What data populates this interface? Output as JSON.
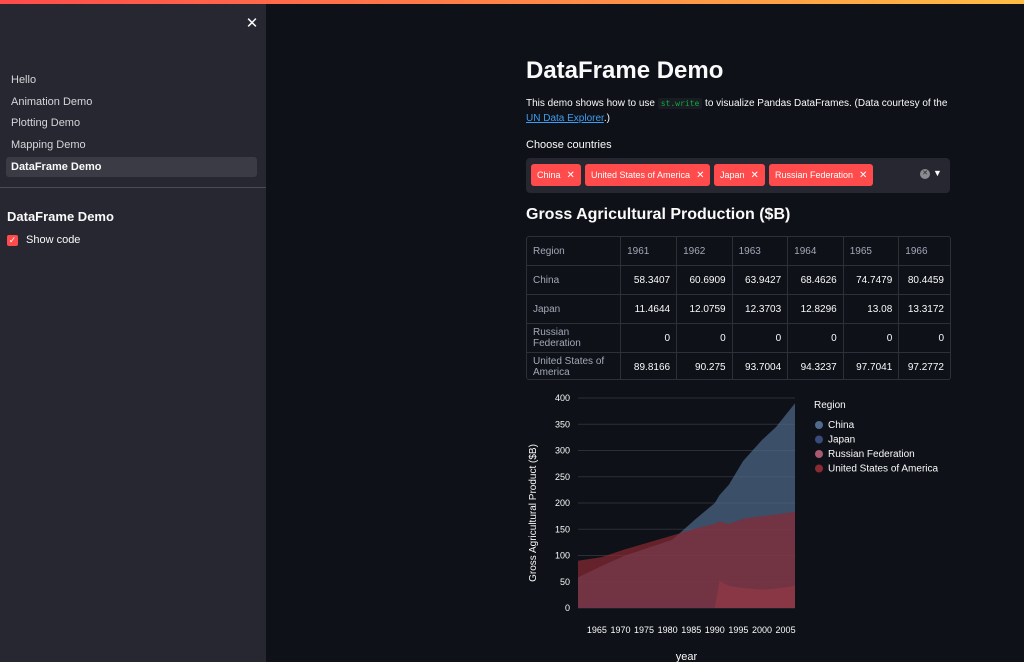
{
  "sidebar": {
    "close_icon": "close-icon",
    "nav": [
      "Hello",
      "Animation Demo",
      "Plotting Demo",
      "Mapping Demo",
      "DataFrame Demo"
    ],
    "active_index": 4,
    "section_title": "DataFrame Demo",
    "show_code": {
      "label": "Show code",
      "checked": true
    }
  },
  "main": {
    "title": "DataFrame Demo",
    "desc_before": "This demo shows how to use ",
    "desc_code": "st.write",
    "desc_middle": " to visualize Pandas DataFrames. (Data courtesy of the ",
    "desc_link": "UN Data Explorer",
    "desc_after": ".)",
    "choose_label": "Choose countries",
    "selected_countries": [
      "China",
      "United States of America",
      "Japan",
      "Russian Federation"
    ],
    "subtitle": "Gross Agricultural Production ($B)"
  },
  "table": {
    "columns": [
      "Region",
      "1961",
      "1962",
      "1963",
      "1964",
      "1965",
      "1966"
    ],
    "rows": [
      [
        "China",
        "58.3407",
        "60.6909",
        "63.9427",
        "68.4626",
        "74.7479",
        "80.4459"
      ],
      [
        "Japan",
        "11.4644",
        "12.0759",
        "12.3703",
        "12.8296",
        "13.08",
        "13.3172"
      ],
      [
        "Russian Federation",
        "0",
        "0",
        "0",
        "0",
        "0",
        "0"
      ],
      [
        "United States of America",
        "89.8166",
        "90.275",
        "93.7004",
        "94.3237",
        "97.7041",
        "97.2772"
      ]
    ]
  },
  "chart_data": {
    "type": "area",
    "stacked": false,
    "xlabel": "year",
    "ylabel": "Gross Agricultural Product ($B)",
    "ylim": [
      0,
      400
    ],
    "xlim": [
      1961,
      2007
    ],
    "y_ticks": [
      0,
      50,
      100,
      150,
      200,
      250,
      300,
      350,
      400
    ],
    "x_ticks": [
      1965,
      1970,
      1975,
      1980,
      1985,
      1990,
      1995,
      2000,
      2005
    ],
    "legend_title": "Region",
    "legend_position": "right",
    "grid": true,
    "x": [
      1961,
      1966,
      1971,
      1976,
      1981,
      1986,
      1990,
      1991,
      1993,
      1996,
      2000,
      2003,
      2007
    ],
    "series": [
      {
        "name": "China",
        "color": "#4e6a8c",
        "values": [
          58,
          80,
          100,
          115,
          130,
          170,
          200,
          215,
          235,
          280,
          320,
          345,
          390
        ]
      },
      {
        "name": "Japan",
        "color": "#3a4a7a",
        "values": [
          11,
          13,
          13,
          13,
          13,
          13,
          12,
          12,
          12,
          12,
          11,
          10,
          10
        ]
      },
      {
        "name": "Russian Federation",
        "color": "#a85a70",
        "values": [
          0,
          0,
          0,
          0,
          0,
          0,
          0,
          52,
          42,
          38,
          35,
          37,
          42
        ]
      },
      {
        "name": "United States of America",
        "color": "#8a2a33",
        "values": [
          90,
          97,
          112,
          125,
          138,
          152,
          160,
          165,
          160,
          170,
          175,
          178,
          183
        ]
      }
    ]
  }
}
